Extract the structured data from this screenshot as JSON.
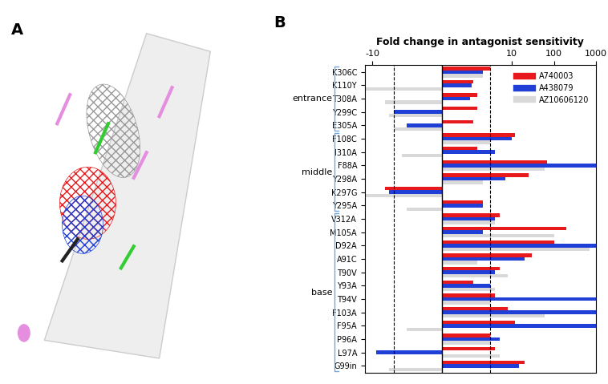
{
  "panel_labels": [
    "A",
    "B"
  ],
  "chart_data": {
    "type": "bar",
    "orientation": "horizontal",
    "x_label": "Fold change in antagonist sensitivity",
    "categories": [
      "K306C",
      "K110Y",
      "T308A",
      "Y299C",
      "E305A",
      "F108C",
      "I310A",
      "F88A",
      "Y298A",
      "K297G",
      "Y295A",
      "V312A",
      "M105A",
      "D92A",
      "A91C",
      "T90V",
      "Y93A",
      "T94V",
      "F103A",
      "F95A",
      "P96A",
      "L97A",
      "G99in"
    ],
    "series": [
      {
        "name": "A740003",
        "color": "#e8191c",
        "values": [
          3,
          1.2,
          1.5,
          1.5,
          1.2,
          12,
          1.5,
          70,
          25,
          -5,
          2,
          5,
          200,
          100,
          30,
          5,
          1.2,
          4,
          8,
          12,
          3,
          4,
          20
        ]
      },
      {
        "name": "A438079",
        "color": "#1f3fd6",
        "values": [
          2,
          1.1,
          1,
          -3,
          -1.5,
          10,
          4,
          1000,
          7,
          -4,
          2,
          4,
          2,
          1000,
          20,
          4,
          3,
          1000,
          1000,
          1000,
          5,
          -8,
          15
        ]
      },
      {
        "name": "AZ10606120",
        "color": "#d9d9d9",
        "values": [
          2,
          -15,
          -5,
          -4,
          -3,
          3,
          -2,
          60,
          2,
          -15,
          -1.5,
          4,
          100,
          700,
          1.5,
          8,
          4,
          3,
          60,
          -1.5,
          3,
          5,
          -4
        ]
      }
    ],
    "groups": [
      {
        "label": "entrance",
        "members": [
          "K306C",
          "K110Y",
          "T308A",
          "Y299C",
          "E305A"
        ]
      },
      {
        "label": "middle",
        "members": [
          "F108C",
          "I310A",
          "F88A",
          "Y298A",
          "K297G",
          "Y295A"
        ]
      },
      {
        "label": "base",
        "members": [
          "V312A",
          "M105A",
          "D92A",
          "A91C",
          "T90V",
          "Y93A",
          "T94V",
          "F103A",
          "F95A",
          "P96A",
          "L97A",
          "G99in"
        ]
      }
    ],
    "threshold_lines": [
      -3,
      3
    ],
    "log": "x",
    "xlim": [
      -15,
      1000
    ],
    "xticks": [
      -10,
      10,
      100,
      1000
    ],
    "legend": "upper right"
  }
}
